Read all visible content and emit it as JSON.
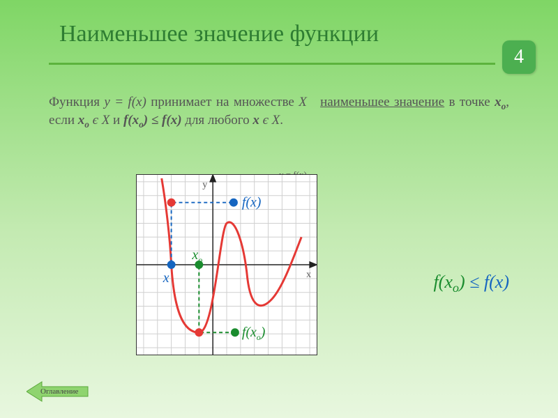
{
  "title": "Наименьшее значение функции",
  "slide_number": "4",
  "definition_html": "Функция <span class='it'>y = f(x)</span> принимает на множестве <span class='it'>X</span> &nbsp;&nbsp;<span class='ul'>наименьшее значение</span> в точке <span class='bi'>x<sub>o</sub></span>, если <span class='bi'>x<sub>o</sub></span> <span class='it'>є X</span> и <span class='bi'>f(x<sub>o</sub>) ≤ f(x)</span> для любого <span class='bi'>x</span> <span class='it'>є X</span>.",
  "curve_note": "y = f(x)",
  "inequality_html": "<span class='g'>f(x<sub>o</sub>)</span> <span class='b'>≤ f(x)</span>",
  "toc_label": "Оглавление",
  "chart": {
    "grid_color": "#cfcfcf",
    "axis_color": "#222",
    "curve_color": "#e53935",
    "blue_color": "#1565c0",
    "green_color": "#1a8c2e",
    "red_color": "#e53935",
    "x_label": "x",
    "y_label": "y",
    "labels": {
      "fx": "f(x)",
      "x": "x",
      "xo_html": "x<sub>o</sub>",
      "fxo_html": "f(x<sub>o</sub>)"
    }
  }
}
